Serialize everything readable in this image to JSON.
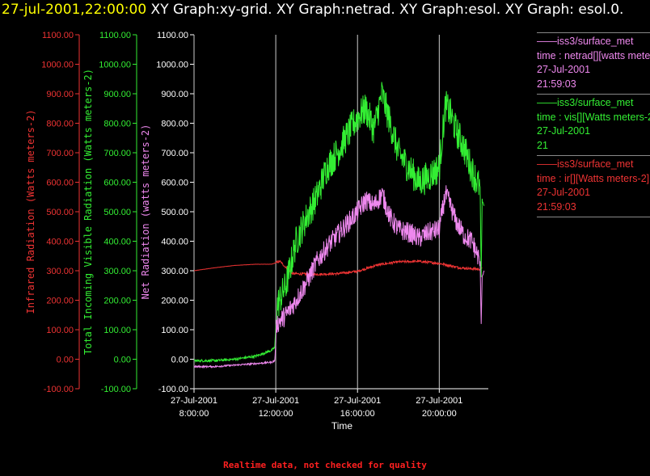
{
  "title": {
    "timestamp": "27-jul-2001,22:00:00",
    "text": "XY Graph:xy-grid.  XY Graph:netrad.  XY Graph:esol.  XY Graph: esol.0."
  },
  "legend": [
    {
      "color": "#ee88ee",
      "lines": [
        "——iss3/surface_met",
        "time : netrad[][watts meters-2]",
        "27-Jul-2001",
        "21:59:03"
      ]
    },
    {
      "color": "#33ee33",
      "lines": [
        "——iss3/surface_met",
        "time : vis[][Watts meters-2]",
        "27-Jul-2001",
        "21"
      ]
    },
    {
      "color": "#ee3333",
      "lines": [
        "——iss3/surface_met",
        "time : ir[][Watts meters-2]",
        "27-Jul-2001",
        "21:59:03"
      ]
    }
  ],
  "footer": "Realtime data, not checked for quality",
  "colors": {
    "ir": "#ee3333",
    "vis": "#33ee33",
    "net": "#ee88ee",
    "axis": "#ffffff"
  },
  "chart_data": {
    "type": "line",
    "xlabel": "Time",
    "x_ticks": [
      {
        "hour": 8,
        "date": "27-Jul-2001",
        "time": "8:00:00"
      },
      {
        "hour": 12,
        "date": "27-Jul-2001",
        "time": "12:00:00"
      },
      {
        "hour": 16,
        "date": "27-Jul-2001",
        "time": "16:00:00"
      },
      {
        "hour": 20,
        "date": "27-Jul-2001",
        "time": "20:00:00"
      }
    ],
    "xlim_hours": [
      8,
      22.4
    ],
    "y_axes": [
      {
        "id": "ir",
        "label": "Infrared Radiation (Watts meters-2)",
        "ylim": [
          -100,
          1100
        ]
      },
      {
        "id": "vis",
        "label": "Total Incoming Visible Radiation (Watts meters-2)",
        "ylim": [
          -100,
          1100
        ]
      },
      {
        "id": "net",
        "label": "Net Radiation (watts meters-2)",
        "ylim": [
          -100,
          1100
        ]
      }
    ],
    "y_ticks": [
      "-100.00",
      "0.00",
      "100.00",
      "200.00",
      "300.00",
      "400.00",
      "500.00",
      "600.00",
      "700.00",
      "800.00",
      "900.00",
      "1000.00",
      "1100.00"
    ],
    "series": [
      {
        "name": "time : ir[][Watts meters-2]",
        "axis": "ir",
        "x_hours": [
          8,
          9,
          10,
          11,
          11.8,
          12.2,
          12.8,
          14,
          15,
          16,
          17,
          18,
          19,
          20,
          21,
          22,
          22.1
        ],
        "values": [
          300,
          310,
          318,
          322,
          322,
          332,
          290,
          288,
          290,
          298,
          320,
          330,
          332,
          325,
          310,
          305,
          310
        ]
      },
      {
        "name": "time : vis[][Watts meters-2]",
        "axis": "vis",
        "x_hours": [
          8,
          9,
          10,
          11,
          11.8,
          11.95,
          12.05,
          12.5,
          13,
          13.5,
          14,
          14.5,
          15,
          15.5,
          16,
          16.4,
          16.8,
          17.2,
          17.6,
          18,
          18.5,
          19,
          19.5,
          20,
          20.3,
          20.5,
          20.8,
          21.2,
          21.6,
          22,
          22.05,
          22.1,
          22.2
        ],
        "values": [
          -5,
          -5,
          0,
          10,
          30,
          40,
          180,
          250,
          400,
          480,
          550,
          650,
          700,
          760,
          820,
          850,
          780,
          900,
          800,
          700,
          650,
          600,
          620,
          650,
          860,
          840,
          780,
          720,
          640,
          580,
          280,
          540,
          520
        ]
      },
      {
        "name": "time : netrad[][watts meters-2]",
        "axis": "net",
        "x_hours": [
          8,
          9,
          10,
          11,
          11.8,
          11.95,
          12.05,
          12.5,
          13,
          13.5,
          14,
          14.5,
          15,
          15.5,
          16,
          16.4,
          16.8,
          17.2,
          17.6,
          18,
          18.5,
          19,
          19.5,
          20,
          20.3,
          20.5,
          20.8,
          21.2,
          21.6,
          22,
          22.05,
          22.1,
          22.2
        ],
        "values": [
          -25,
          -25,
          -20,
          -15,
          -10,
          -5,
          120,
          150,
          200,
          260,
          330,
          380,
          420,
          460,
          500,
          540,
          520,
          560,
          480,
          440,
          430,
          410,
          430,
          440,
          560,
          530,
          470,
          420,
          400,
          330,
          120,
          280,
          300
        ]
      }
    ]
  }
}
